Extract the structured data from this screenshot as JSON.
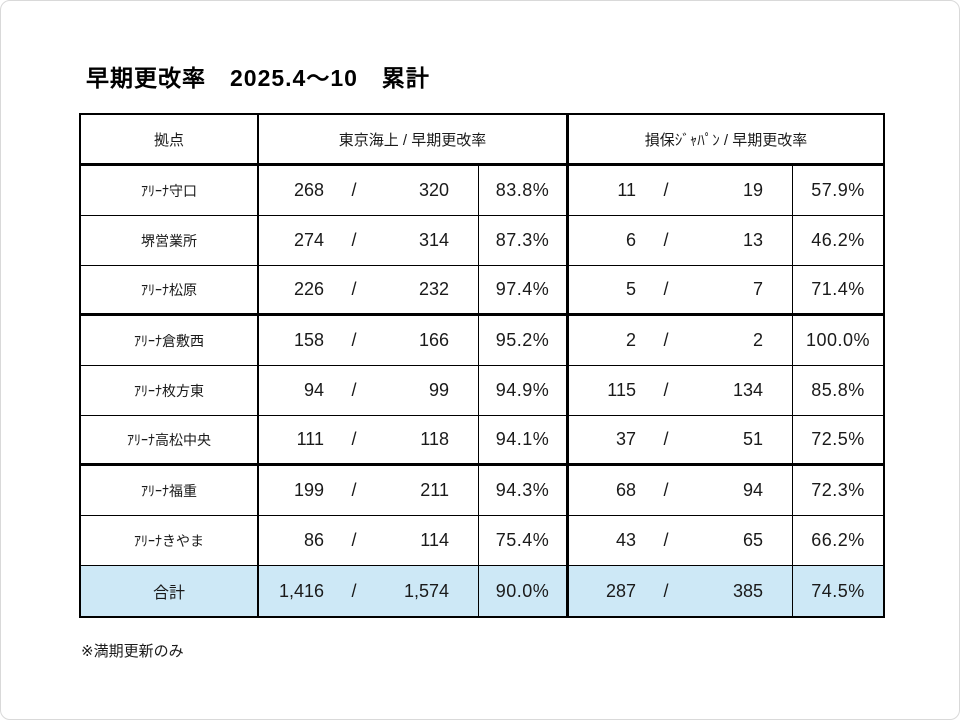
{
  "page": {
    "title": "早期更改率　2025.4～10　累計",
    "footnote": "※満期更新のみ"
  },
  "colors": {
    "border": "#000000",
    "total_row_background": "#cde8f6",
    "text": "#1a1a1a",
    "page_background": "#ffffff"
  },
  "table": {
    "columns": {
      "location": "拠点",
      "tokio_marine": "東京海上 / 早期更改率",
      "sompo_japan": "損保ｼﾞｬﾊﾟﾝ / 早期更改率"
    },
    "separator": "/",
    "rows": [
      {
        "location": "ｱﾘｰﾅ守口",
        "tokio_marine": {
          "renewed": "268",
          "total": "320",
          "rate": "83.8%"
        },
        "sompo_japan": {
          "renewed": "11",
          "total": "19",
          "rate": "57.9%"
        },
        "group_end": false
      },
      {
        "location": "堺営業所",
        "tokio_marine": {
          "renewed": "274",
          "total": "314",
          "rate": "87.3%"
        },
        "sompo_japan": {
          "renewed": "6",
          "total": "13",
          "rate": "46.2%"
        },
        "group_end": false
      },
      {
        "location": "ｱﾘｰﾅ松原",
        "tokio_marine": {
          "renewed": "226",
          "total": "232",
          "rate": "97.4%"
        },
        "sompo_japan": {
          "renewed": "5",
          "total": "7",
          "rate": "71.4%"
        },
        "group_end": true
      },
      {
        "location": "ｱﾘｰﾅ倉敷西",
        "tokio_marine": {
          "renewed": "158",
          "total": "166",
          "rate": "95.2%"
        },
        "sompo_japan": {
          "renewed": "2",
          "total": "2",
          "rate": "100.0%"
        },
        "group_end": false
      },
      {
        "location": "ｱﾘｰﾅ枚方東",
        "tokio_marine": {
          "renewed": "94",
          "total": "99",
          "rate": "94.9%"
        },
        "sompo_japan": {
          "renewed": "115",
          "total": "134",
          "rate": "85.8%"
        },
        "group_end": false
      },
      {
        "location": "ｱﾘｰﾅ高松中央",
        "tokio_marine": {
          "renewed": "111",
          "total": "118",
          "rate": "94.1%"
        },
        "sompo_japan": {
          "renewed": "37",
          "total": "51",
          "rate": "72.5%"
        },
        "group_end": true
      },
      {
        "location": "ｱﾘｰﾅ福重",
        "tokio_marine": {
          "renewed": "199",
          "total": "211",
          "rate": "94.3%"
        },
        "sompo_japan": {
          "renewed": "68",
          "total": "94",
          "rate": "72.3%"
        },
        "group_end": false
      },
      {
        "location": "ｱﾘｰﾅきやま",
        "tokio_marine": {
          "renewed": "86",
          "total": "114",
          "rate": "75.4%"
        },
        "sompo_japan": {
          "renewed": "43",
          "total": "65",
          "rate": "66.2%"
        },
        "group_end": false
      }
    ],
    "total_row": {
      "location": "合計",
      "tokio_marine": {
        "renewed": "1,416",
        "total": "1,574",
        "rate": "90.0%"
      },
      "sompo_japan": {
        "renewed": "287",
        "total": "385",
        "rate": "74.5%"
      }
    }
  }
}
